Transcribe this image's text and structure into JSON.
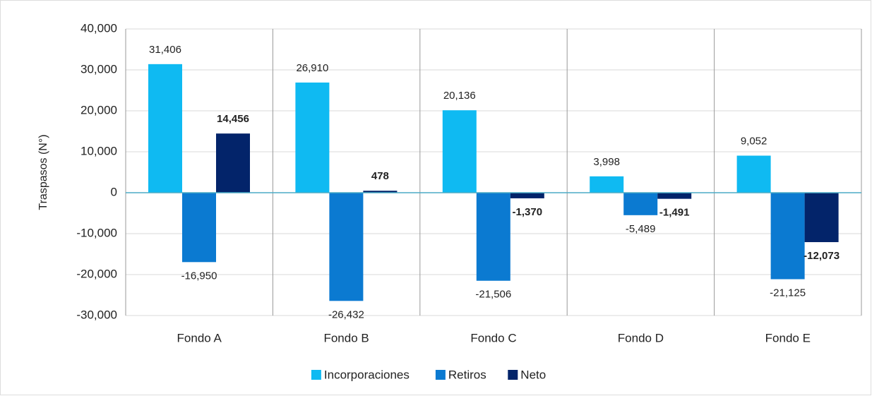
{
  "chart_data": {
    "type": "bar",
    "y_label": "Traspasos (N°)",
    "categories": [
      "Fondo A",
      "Fondo B",
      "Fondo C",
      "Fondo D",
      "Fondo E"
    ],
    "series": [
      {
        "name": "Incorporaciones",
        "color": "#0fbaf2",
        "values": [
          31406,
          26910,
          20136,
          3998,
          9052
        ],
        "value_labels": [
          "31,406",
          "26,910",
          "20,136",
          "3,998",
          "9,052"
        ]
      },
      {
        "name": "Retiros",
        "color": "#0b7ad1",
        "values": [
          -16950,
          -26432,
          -21506,
          -5489,
          -21125
        ],
        "value_labels": [
          "-16,950",
          "-26,432",
          "-21,506",
          "-5,489",
          "-21,125"
        ]
      },
      {
        "name": "Neto",
        "color": "#03246a",
        "bold_labels": true,
        "values": [
          14456,
          478,
          -1370,
          -1491,
          -12073
        ],
        "value_labels": [
          "14,456",
          "478",
          "-1,370",
          "-1,491",
          "-12,073"
        ]
      }
    ],
    "ylim": [
      -30000,
      40000
    ],
    "yticks": [
      {
        "value": -30000,
        "label": "-30,000"
      },
      {
        "value": -20000,
        "label": "-20,000"
      },
      {
        "value": -10000,
        "label": "-10,000"
      },
      0,
      {
        "value": 10000,
        "label": "10,000"
      },
      {
        "value": 20000,
        "label": "20,000"
      },
      {
        "value": 30000,
        "label": "30,000"
      },
      {
        "value": 40000,
        "label": "40,000"
      }
    ],
    "grid": true,
    "legend": "bottom"
  }
}
